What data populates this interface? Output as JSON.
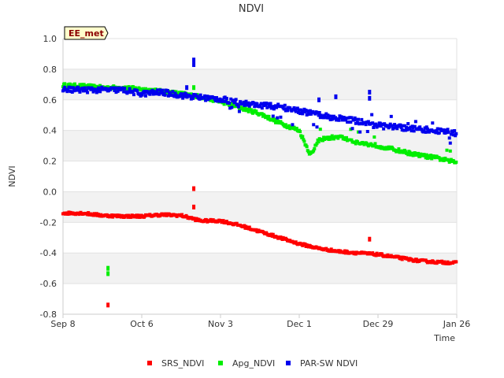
{
  "chart_data": {
    "type": "scatter",
    "title": "NDVI",
    "badge": "EE_met",
    "xlabel": "Time",
    "ylabel": "NDVI",
    "ylim": [
      -0.8,
      1.0
    ],
    "yticks": [
      -0.8,
      -0.6,
      -0.4,
      -0.2,
      0.0,
      0.2,
      0.4,
      0.6,
      0.8,
      1.0
    ],
    "ytick_labels": [
      "-0.8",
      "-0.6",
      "-0.4",
      "-0.2",
      "0.0",
      "0.2",
      "0.4",
      "0.6",
      "0.8",
      "1.0"
    ],
    "xlim_days": [
      0,
      140
    ],
    "xticks": [
      {
        "day": 0,
        "label": "Sep 8"
      },
      {
        "day": 28,
        "label": "Oct 6"
      },
      {
        "day": 56,
        "label": "Nov 3"
      },
      {
        "day": 84,
        "label": "Dec 1"
      },
      {
        "day": 112,
        "label": "Dec 29"
      },
      {
        "day": 140,
        "label": "Jan 26"
      }
    ],
    "grid": "alternating horizontal bands",
    "legend_position": "bottom",
    "series": [
      {
        "name": "SRS_NDVI",
        "color": "#ff0000",
        "trend": [
          [
            0,
            -0.14
          ],
          [
            7,
            -0.14
          ],
          [
            14,
            -0.155
          ],
          [
            21,
            -0.16
          ],
          [
            28,
            -0.16
          ],
          [
            35,
            -0.15
          ],
          [
            42,
            -0.155
          ],
          [
            49,
            -0.19
          ],
          [
            56,
            -0.19
          ],
          [
            63,
            -0.22
          ],
          [
            70,
            -0.26
          ],
          [
            77,
            -0.3
          ],
          [
            84,
            -0.34
          ],
          [
            91,
            -0.37
          ],
          [
            98,
            -0.39
          ],
          [
            105,
            -0.4
          ],
          [
            112,
            -0.41
          ],
          [
            119,
            -0.43
          ],
          [
            126,
            -0.45
          ],
          [
            133,
            -0.46
          ],
          [
            140,
            -0.465
          ]
        ],
        "outliers": [
          [
            16,
            -0.74
          ],
          [
            46.5,
            0.02
          ],
          [
            46.5,
            -0.1
          ],
          [
            109,
            -0.31
          ]
        ]
      },
      {
        "name": "Apg_NDVI",
        "color": "#00ee00",
        "trend": [
          [
            0,
            0.695
          ],
          [
            7,
            0.69
          ],
          [
            14,
            0.68
          ],
          [
            21,
            0.68
          ],
          [
            28,
            0.67
          ],
          [
            35,
            0.655
          ],
          [
            42,
            0.64
          ],
          [
            49,
            0.62
          ],
          [
            56,
            0.59
          ],
          [
            63,
            0.55
          ],
          [
            70,
            0.51
          ],
          [
            77,
            0.45
          ],
          [
            84,
            0.4
          ],
          [
            88,
            0.24
          ],
          [
            91,
            0.34
          ],
          [
            98,
            0.36
          ],
          [
            105,
            0.32
          ],
          [
            112,
            0.3
          ],
          [
            119,
            0.27
          ],
          [
            126,
            0.24
          ],
          [
            133,
            0.22
          ],
          [
            140,
            0.19
          ]
        ],
        "outliers": [
          [
            16,
            -0.5
          ],
          [
            16,
            -0.535
          ],
          [
            46.5,
            0.68
          ]
        ]
      },
      {
        "name": "PAR-SW NDVI",
        "color": "#0000ee",
        "trend": [
          [
            0,
            0.67
          ],
          [
            7,
            0.665
          ],
          [
            14,
            0.665
          ],
          [
            21,
            0.665
          ],
          [
            28,
            0.64
          ],
          [
            35,
            0.65
          ],
          [
            42,
            0.63
          ],
          [
            49,
            0.615
          ],
          [
            56,
            0.605
          ],
          [
            63,
            0.58
          ],
          [
            70,
            0.565
          ],
          [
            77,
            0.555
          ],
          [
            84,
            0.53
          ],
          [
            91,
            0.5
          ],
          [
            98,
            0.48
          ],
          [
            105,
            0.46
          ],
          [
            112,
            0.43
          ],
          [
            119,
            0.42
          ],
          [
            126,
            0.41
          ],
          [
            133,
            0.4
          ],
          [
            140,
            0.38
          ]
        ],
        "outliers": [
          [
            46.5,
            0.86
          ],
          [
            46.5,
            0.83
          ],
          [
            44,
            0.68
          ],
          [
            91,
            0.6
          ],
          [
            97,
            0.62
          ],
          [
            109,
            0.65
          ],
          [
            109,
            0.61
          ]
        ]
      }
    ]
  }
}
